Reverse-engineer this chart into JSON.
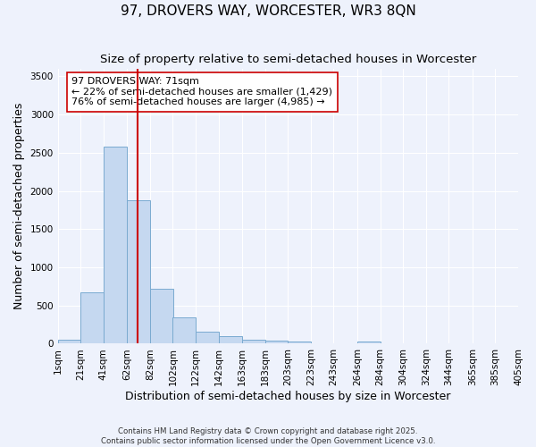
{
  "title_line1": "97, DROVERS WAY, WORCESTER, WR3 8QN",
  "title_line2": "Size of property relative to semi-detached houses in Worcester",
  "xlabel": "Distribution of semi-detached houses by size in Worcester",
  "ylabel": "Number of semi-detached properties",
  "bar_color": "#c5d8f0",
  "bar_edge_color": "#7aaad0",
  "vline_color": "#cc0000",
  "vline_x": 71,
  "annotation_title": "97 DROVERS WAY: 71sqm",
  "annotation_line2": "← 22% of semi-detached houses are smaller (1,429)",
  "annotation_line3": "76% of semi-detached houses are larger (4,985) →",
  "background_color": "#eef2fc",
  "grid_color": "#ffffff",
  "bin_edges": [
    1,
    21,
    41,
    62,
    82,
    102,
    122,
    142,
    163,
    183,
    203,
    223,
    243,
    264,
    284,
    304,
    324,
    344,
    365,
    385,
    405
  ],
  "bin_heights": [
    55,
    670,
    2580,
    1880,
    720,
    340,
    155,
    95,
    55,
    35,
    25,
    5,
    0,
    30,
    0,
    0,
    0,
    0,
    0,
    0
  ],
  "ylim": [
    0,
    3600
  ],
  "yticks": [
    0,
    500,
    1000,
    1500,
    2000,
    2500,
    3000,
    3500
  ],
  "xlim": [
    1,
    405
  ],
  "title_fontsize": 11,
  "subtitle_fontsize": 9.5,
  "axis_label_fontsize": 9,
  "tick_fontsize": 7.5,
  "annotation_fontsize": 8,
  "footer_line1": "Contains HM Land Registry data © Crown copyright and database right 2025.",
  "footer_line2": "Contains public sector information licensed under the Open Government Licence v3.0."
}
